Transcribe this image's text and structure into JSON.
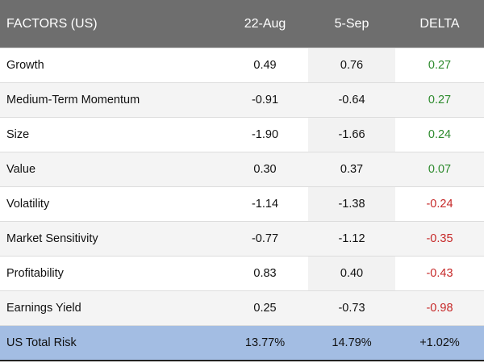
{
  "header": {
    "factor_label": "FACTORS (US)",
    "date1": "22-Aug",
    "date2": "5-Sep",
    "delta": "DELTA"
  },
  "rows": [
    {
      "factor": "Growth",
      "date1": "0.49",
      "date2": "0.76",
      "delta": "0.27",
      "direction": "positive"
    },
    {
      "factor": "Medium-Term Momentum",
      "date1": "-0.91",
      "date2": "-0.64",
      "delta": "0.27",
      "direction": "positive"
    },
    {
      "factor": "Size",
      "date1": "-1.90",
      "date2": "-1.66",
      "delta": "0.24",
      "direction": "positive"
    },
    {
      "factor": "Value",
      "date1": "0.30",
      "date2": "0.37",
      "delta": "0.07",
      "direction": "positive"
    },
    {
      "factor": "Volatility",
      "date1": "-1.14",
      "date2": "-1.38",
      "delta": "-0.24",
      "direction": "negative"
    },
    {
      "factor": "Market Sensitivity",
      "date1": "-0.77",
      "date2": "-1.12",
      "delta": "-0.35",
      "direction": "negative"
    },
    {
      "factor": "Profitability",
      "date1": "0.83",
      "date2": "0.40",
      "delta": "-0.43",
      "direction": "negative"
    },
    {
      "factor": "Earnings Yield",
      "date1": "0.25",
      "date2": "-0.73",
      "delta": "-0.98",
      "direction": "negative"
    }
  ],
  "total": {
    "factor": "US Total Risk",
    "date1": "13.77%",
    "date2": "14.79%",
    "delta": "+1.02%"
  },
  "colors": {
    "header_bg": "#6e6e6e",
    "total_bg": "#a3bde3",
    "positive": "#2e8b2e",
    "negative": "#c62828"
  }
}
